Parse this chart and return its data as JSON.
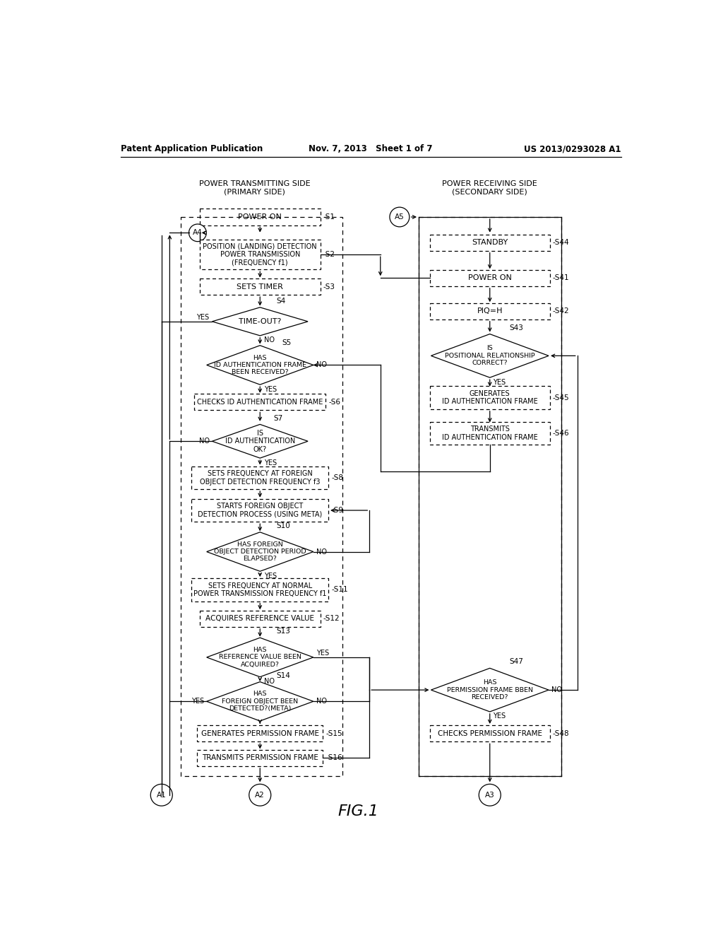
{
  "header_left": "Patent Application Publication",
  "header_mid": "Nov. 7, 2013   Sheet 1 of 7",
  "header_right": "US 2013/0293028 A1",
  "title_left": "POWER TRANSMITTING SIDE\n(PRIMARY SIDE)",
  "title_right": "POWER RECEIVING SIDE\n(SECONDARY SIDE)",
  "fig_label": "FIG.1",
  "bg_color": "#ffffff"
}
